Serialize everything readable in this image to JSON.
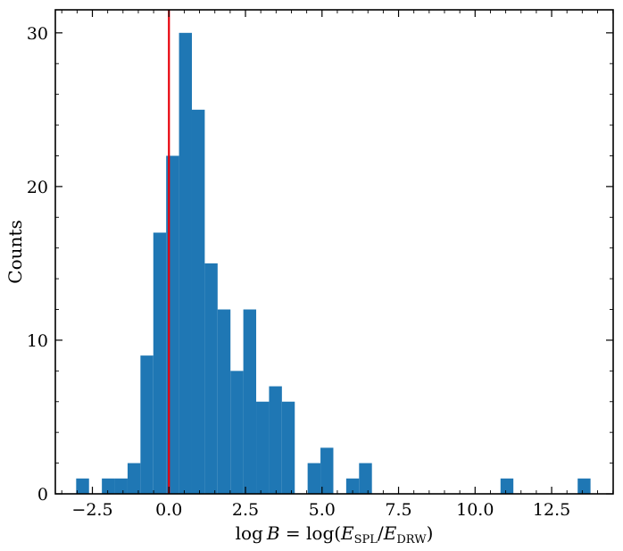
{
  "chart_data": {
    "type": "bar",
    "xlabel": "log B = log(E_SPL/E_DRW)",
    "xlabel_parts": {
      "lead": "log",
      "var": "B",
      "eq": " = log(",
      "e1": "E",
      "sub1": "SPL",
      "slash": "/",
      "e2": "E",
      "sub2": "DRW",
      "close": ")"
    },
    "ylabel": "Counts",
    "xlim": [
      -3.71,
      14.51
    ],
    "ylim": [
      0,
      31.5
    ],
    "xticks": [
      -2.5,
      0.0,
      2.5,
      5.0,
      7.5,
      10.0,
      12.5
    ],
    "xtick_labels": [
      "−2.5",
      "0.0",
      "2.5",
      "5.0",
      "7.5",
      "10.0",
      "12.5"
    ],
    "yticks": [
      0,
      10,
      20,
      30
    ],
    "ytick_labels": [
      "0",
      "10",
      "20",
      "30"
    ],
    "bin_width": 0.42,
    "bins": [
      {
        "x0": -3.03,
        "count": 1
      },
      {
        "x0": -2.19,
        "count": 1
      },
      {
        "x0": -1.77,
        "count": 1
      },
      {
        "x0": -1.35,
        "count": 2
      },
      {
        "x0": -0.93,
        "count": 9
      },
      {
        "x0": -0.51,
        "count": 17
      },
      {
        "x0": -0.09,
        "count": 22
      },
      {
        "x0": 0.33,
        "count": 30
      },
      {
        "x0": 0.75,
        "count": 25
      },
      {
        "x0": 1.17,
        "count": 15
      },
      {
        "x0": 1.59,
        "count": 12
      },
      {
        "x0": 2.01,
        "count": 8
      },
      {
        "x0": 2.43,
        "count": 12
      },
      {
        "x0": 2.85,
        "count": 6
      },
      {
        "x0": 3.27,
        "count": 7
      },
      {
        "x0": 3.69,
        "count": 6
      },
      {
        "x0": 4.53,
        "count": 2
      },
      {
        "x0": 4.95,
        "count": 3
      },
      {
        "x0": 5.79,
        "count": 1
      },
      {
        "x0": 6.21,
        "count": 2
      },
      {
        "x0": 10.83,
        "count": 1
      },
      {
        "x0": 13.35,
        "count": 1
      }
    ],
    "reference_line": {
      "x": 0.0,
      "color": "#e8000b"
    },
    "bar_color": "#1f77b4",
    "grid": false,
    "tick_direction": "in",
    "minor_ticks": true
  }
}
